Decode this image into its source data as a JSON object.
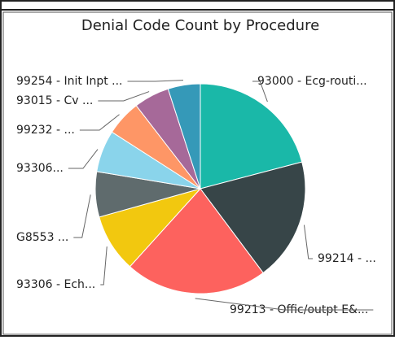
{
  "chart_data": {
    "type": "pie",
    "title": "Denial Code Count by Procedure",
    "categories": [
      "93000 - Ecg-routi...",
      "99214 - ...",
      "99213 - Offic/outpt E&...",
      "93306 - Ech...",
      "G8553 ...",
      "93306...",
      "99232 - ...",
      "93015 - Cv ...",
      "99254 - Init Inpt ..."
    ],
    "values": [
      21,
      19,
      22,
      9,
      7,
      6.5,
      5.5,
      5.5,
      5
    ],
    "extra_slice_note": null,
    "colors": [
      "#1ab8a8",
      "#374548",
      "#fd625e",
      "#f2c80f",
      "#5f6b6d",
      "#8ad4eb",
      "#fe9666",
      "#a66999",
      "#3599b8"
    ]
  }
}
